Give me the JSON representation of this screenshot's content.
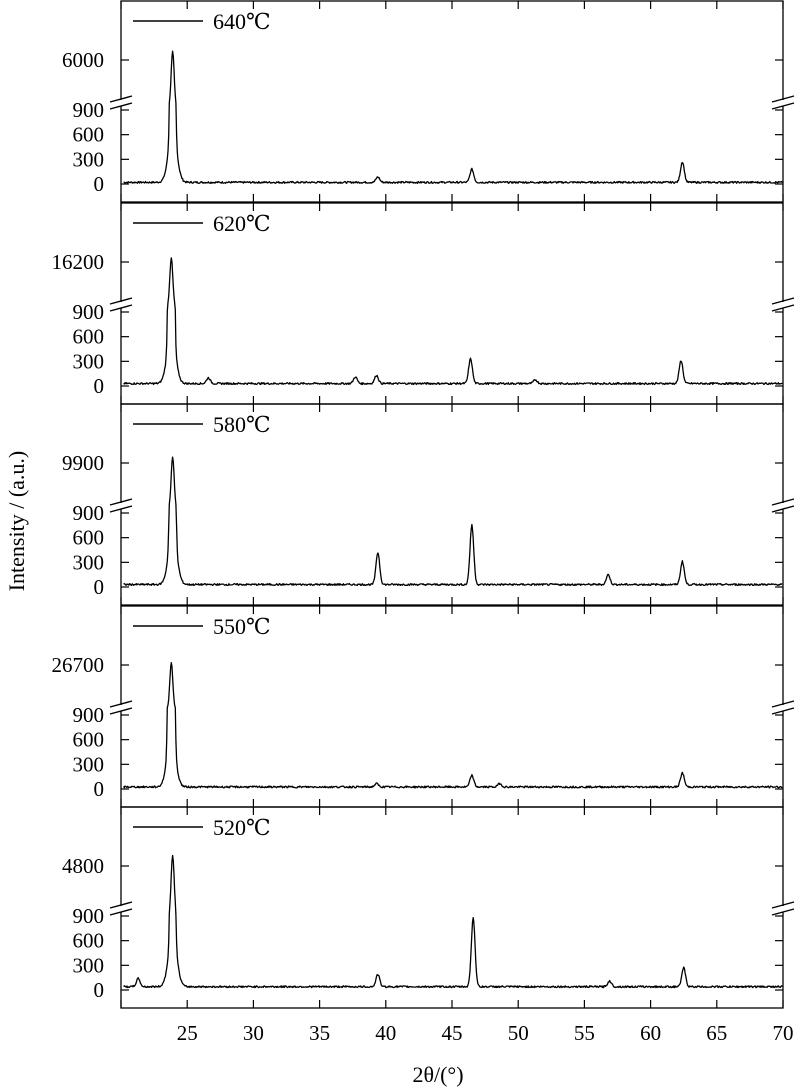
{
  "chart_data": {
    "type": "line",
    "xlabel": "2θ/(°)",
    "ylabel": "Intensity / (a.u.)",
    "xlim": [
      20,
      70
    ],
    "x_ticks": [
      25,
      30,
      35,
      40,
      45,
      50,
      55,
      60,
      65,
      70
    ],
    "y_ticks_lower": [
      0,
      300,
      600,
      900
    ],
    "broken_y_axis": true,
    "legend_placement": "top-left of each panel",
    "panels": [
      {
        "name": "640℃",
        "upper_tick": 6000,
        "baseline": 20,
        "peaks": [
          {
            "x": 23.9,
            "y": 6400
          },
          {
            "x": 39.4,
            "y": 65
          },
          {
            "x": 46.5,
            "y": 160
          },
          {
            "x": 62.4,
            "y": 250
          }
        ]
      },
      {
        "name": "620℃",
        "upper_tick": 16200,
        "baseline": 30,
        "peaks": [
          {
            "x": 23.8,
            "y": 17000
          },
          {
            "x": 26.6,
            "y": 70
          },
          {
            "x": 37.7,
            "y": 80
          },
          {
            "x": 39.3,
            "y": 100
          },
          {
            "x": 46.4,
            "y": 300
          },
          {
            "x": 51.3,
            "y": 45
          },
          {
            "x": 62.3,
            "y": 280
          }
        ]
      },
      {
        "name": "580℃",
        "upper_tick": 9900,
        "baseline": 30,
        "peaks": [
          {
            "x": 23.9,
            "y": 10500
          },
          {
            "x": 39.4,
            "y": 390
          },
          {
            "x": 46.5,
            "y": 720
          },
          {
            "x": 56.8,
            "y": 120
          },
          {
            "x": 62.4,
            "y": 280
          }
        ]
      },
      {
        "name": "550℃",
        "upper_tick": 26700,
        "baseline": 25,
        "peaks": [
          {
            "x": 23.8,
            "y": 27500
          },
          {
            "x": 39.3,
            "y": 40
          },
          {
            "x": 46.5,
            "y": 140
          },
          {
            "x": 48.6,
            "y": 40
          },
          {
            "x": 62.4,
            "y": 170
          }
        ]
      },
      {
        "name": "520℃",
        "upper_tick": 4800,
        "baseline": 40,
        "peaks": [
          {
            "x": 21.3,
            "y": 100
          },
          {
            "x": 23.9,
            "y": 5100
          },
          {
            "x": 39.4,
            "y": 150
          },
          {
            "x": 46.6,
            "y": 840
          },
          {
            "x": 56.9,
            "y": 70
          },
          {
            "x": 62.5,
            "y": 230
          }
        ]
      }
    ]
  }
}
